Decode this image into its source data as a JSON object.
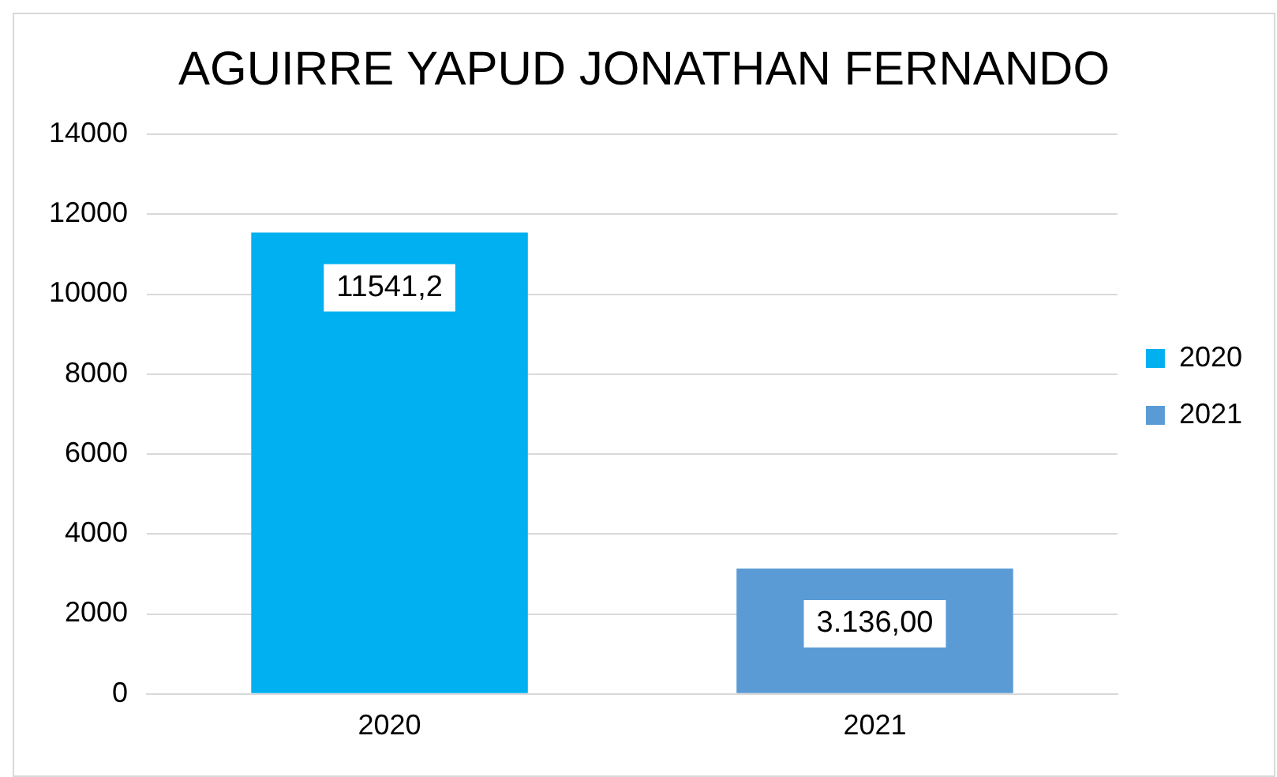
{
  "chart_data": {
    "type": "bar",
    "title": "AGUIRRE YAPUD JONATHAN FERNANDO",
    "categories": [
      "2020",
      "2021"
    ],
    "series": [
      {
        "name": "2020",
        "color": "#00b0f0",
        "values": [
          11541.2,
          null
        ],
        "value_labels": [
          "11541,2",
          null
        ]
      },
      {
        "name": "2021",
        "color": "#5b9bd5",
        "values": [
          null,
          3136
        ],
        "value_labels": [
          null,
          "3.136,00"
        ]
      }
    ],
    "ylim": [
      0,
      14000
    ],
    "yticks": [
      0,
      2000,
      4000,
      6000,
      8000,
      10000,
      12000,
      14000
    ],
    "grid": "y",
    "legend": "right"
  }
}
